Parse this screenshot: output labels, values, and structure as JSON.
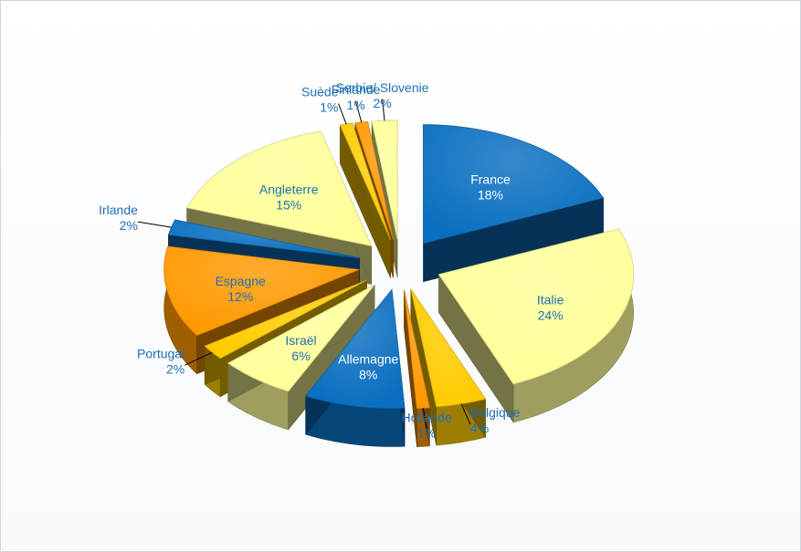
{
  "chart_data": {
    "type": "pie",
    "style": "3d-exploded",
    "categories": [
      "France",
      "Italie",
      "Belgique",
      "Hollande",
      "Allemagne",
      "Israël",
      "Portugal",
      "Espagne",
      "Irlande",
      "Angleterre",
      "Suède",
      "Finlande",
      "Serbie/ Slovenie"
    ],
    "values": [
      18,
      24,
      4,
      1,
      8,
      6,
      2,
      12,
      2,
      15,
      1,
      1,
      2
    ],
    "labels": [
      "18%",
      "24%",
      "4%",
      "1%",
      "8%",
      "6%",
      "2%",
      "12%",
      "2%",
      "15%",
      "1%",
      "1%",
      "2%"
    ],
    "colors": [
      "#0a6fc0",
      "#ffff99",
      "#ffcc00",
      "#ff9900",
      "#0a6fc0",
      "#ffff99",
      "#ffcc00",
      "#ff9900",
      "#0a6fc0",
      "#ffff99",
      "#ffcc00",
      "#ff9900",
      "#ffff99"
    ],
    "label_colors": [
      "white",
      "blue",
      "blue",
      "blue",
      "white",
      "blue",
      "blue",
      "blue",
      "blue",
      "blue",
      "blue",
      "blue",
      "blue"
    ],
    "legend": "none"
  }
}
